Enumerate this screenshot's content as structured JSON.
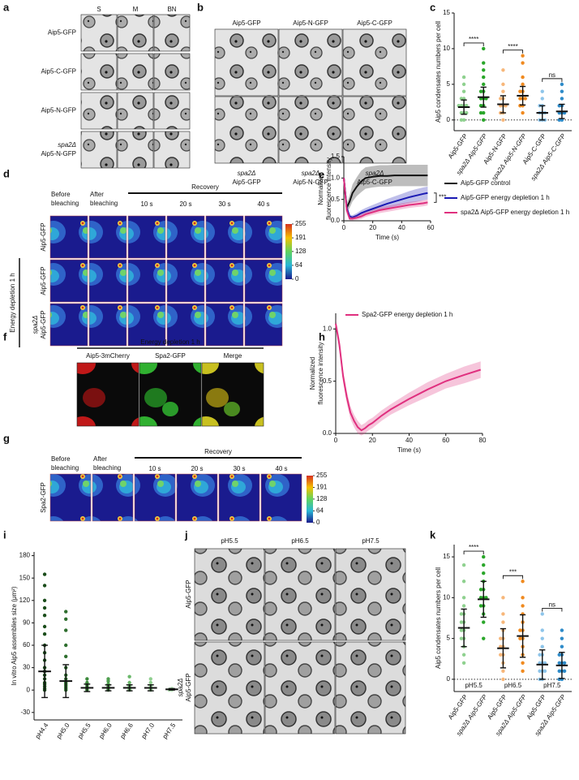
{
  "figure": {
    "a": {
      "label": "a",
      "columns": [
        "S",
        "M",
        "BN"
      ],
      "rows": [
        [
          "Aip5-GFP"
        ],
        [
          "Aip5-C-GFP"
        ],
        [
          "Aip5-N-GFP"
        ],
        [
          "spa2Δ",
          "Aip5-N-GFP"
        ]
      ]
    },
    "b": {
      "label": "b",
      "columns": [
        "Aip5-GFP",
        "Aip5-N-GFP",
        "Aip5-C-GFP"
      ],
      "bottom": [
        [
          "spa2Δ",
          "Aip5-GFP"
        ],
        [
          "spa2Δ",
          "Aip5-N-GFP"
        ],
        [
          "spa2Δ",
          "Aip5-C-GFP"
        ]
      ]
    },
    "d": {
      "label": "d",
      "before": [
        "Before",
        "bleaching"
      ],
      "after": [
        "After",
        "bleaching"
      ],
      "recovery": "Recovery",
      "times": [
        "10 s",
        "20 s",
        "30 s",
        "40 s"
      ],
      "colorbar_ticks": [
        255,
        191,
        128,
        64,
        0
      ],
      "group": "Energy depletion 1 h",
      "rows": [
        [
          "Aip5-GFP"
        ],
        [
          "Aip5-GFP"
        ],
        [
          "spa2Δ",
          "Aip5-GFP"
        ]
      ]
    },
    "f": {
      "label": "f",
      "title": "Energy depletion 1 h",
      "columns": [
        "Aip5-3mCherry",
        "Spa2-GFP",
        "Merge"
      ]
    },
    "g": {
      "label": "g",
      "before": [
        "Before",
        "bleaching"
      ],
      "after": [
        "After",
        "bleaching"
      ],
      "recovery": "Recovery",
      "times": [
        "10 s",
        "20 s",
        "30 s",
        "40 s"
      ],
      "colorbar_ticks": [
        255,
        191,
        128,
        64,
        0
      ],
      "rows": [
        [
          "Spa2-GFP"
        ]
      ]
    },
    "j": {
      "label": "j",
      "columns": [
        "pH5.5",
        "pH6.5",
        "pH7.5"
      ],
      "rows": [
        [
          "Aip5-GFP"
        ],
        [
          "spa2Δ",
          "Aip5-GFP"
        ]
      ]
    }
  },
  "chart_data": [
    {
      "type": "dotplot",
      "panel_label": "c",
      "ylabel": "Aip5 condensates numbers per cell",
      "categories": [
        "Aip5-GFP",
        "spa2Δ Aip5-GFP",
        "Aip5-N-GFP",
        "spa2Δ Aip5-N-GFP",
        "Aip5-C-GFP",
        "spa2Δ Aip5-C-GFP"
      ],
      "colors": [
        "#8fd18f",
        "#2aa62a",
        "#f7b77a",
        "#f08a1f",
        "#8ec5ea",
        "#2e8bc9"
      ],
      "points": [
        [
          0,
          0,
          1,
          1,
          1,
          2,
          2,
          2,
          2,
          3,
          3,
          4,
          5,
          6
        ],
        [
          0,
          1,
          1,
          2,
          2,
          3,
          3,
          3,
          4,
          4,
          5,
          6,
          7,
          8,
          10
        ],
        [
          0,
          1,
          1,
          2,
          2,
          2,
          3,
          3,
          4,
          5,
          7
        ],
        [
          1,
          2,
          2,
          3,
          3,
          3,
          4,
          4,
          5,
          6,
          8,
          9
        ],
        [
          0,
          0,
          0,
          1,
          1,
          1,
          2,
          2,
          3,
          4
        ],
        [
          0,
          0,
          1,
          1,
          1,
          2,
          2,
          3,
          4,
          5
        ]
      ],
      "mean": [
        1.8,
        3.2,
        2.2,
        3.4,
        1.0,
        1.2
      ],
      "sd": [
        1.0,
        1.4,
        1.2,
        1.3,
        1.0,
        1.0
      ],
      "annotations": [
        "****",
        "****",
        "ns"
      ],
      "zero_line": true,
      "ylim": [
        -1.5,
        15
      ],
      "yticks": [
        0,
        5,
        10,
        15
      ]
    },
    {
      "type": "line",
      "panel_label": "e",
      "ylabel": [
        "Normalized",
        "fluorescence intensity"
      ],
      "xlabel": "Time (s)",
      "x": [
        0,
        2,
        4,
        6,
        9,
        12,
        15,
        20,
        25,
        30,
        35,
        40,
        45,
        50,
        55,
        58
      ],
      "series": [
        {
          "name": "Aip5-GFP control",
          "color": "#111111",
          "values": [
            1.0,
            0.3,
            0.45,
            0.65,
            0.8,
            0.92,
            1.0,
            1.03,
            1.05,
            1.05,
            1.06,
            1.06,
            1.06,
            1.06,
            1.06,
            1.06
          ],
          "sd": [
            0.05,
            0.1,
            0.15,
            0.2,
            0.22,
            0.25,
            0.25,
            0.25,
            0.25,
            0.25,
            0.25,
            0.25,
            0.25,
            0.25,
            0.25,
            0.25
          ]
        },
        {
          "name": "Aip5-GFP energy depletion 1 h",
          "color": "#1a1ab3",
          "values": [
            1.0,
            0.3,
            0.1,
            0.08,
            0.12,
            0.18,
            0.22,
            0.28,
            0.34,
            0.4,
            0.45,
            0.5,
            0.55,
            0.59,
            0.63,
            0.65
          ],
          "sd": [
            0.05,
            0.1,
            0.05,
            0.05,
            0.06,
            0.07,
            0.08,
            0.09,
            0.1,
            0.11,
            0.12,
            0.13,
            0.14,
            0.15,
            0.15,
            0.15
          ]
        },
        {
          "name": "spa2Δ Aip5-GFP energy depletion 1 h",
          "color": "#e0307f",
          "values": [
            1.0,
            0.25,
            0.05,
            0.05,
            0.07,
            0.1,
            0.15,
            0.2,
            0.25,
            0.28,
            0.31,
            0.34,
            0.37,
            0.39,
            0.41,
            0.43
          ],
          "sd": [
            0.05,
            0.08,
            0.04,
            0.04,
            0.05,
            0.06,
            0.06,
            0.06,
            0.07,
            0.07,
            0.07,
            0.07,
            0.07,
            0.07,
            0.07,
            0.07
          ]
        }
      ],
      "annotation": "***",
      "legend": "right",
      "xlim": [
        0,
        60
      ],
      "xticks": [
        0,
        20,
        40,
        60
      ],
      "ylim": [
        0,
        1.5
      ],
      "yticks": [
        {
          "value": 0,
          "label": "0.0"
        },
        0.5,
        {
          "value": 1,
          "label": "1.0"
        },
        1.5
      ]
    },
    {
      "type": "line",
      "panel_label": "h",
      "ylabel": [
        "Normalized",
        "fluorescence intensity"
      ],
      "xlabel": "Time (s)",
      "x": [
        0,
        2,
        4,
        6,
        8,
        10,
        12,
        14,
        16,
        18,
        20,
        25,
        30,
        40,
        50,
        60,
        70,
        79
      ],
      "series": [
        {
          "name": "Spa2-GFP energy depletion 1 h",
          "color": "#e0307f",
          "values": [
            1.05,
            0.85,
            0.55,
            0.35,
            0.2,
            0.12,
            0.06,
            0.03,
            0.05,
            0.08,
            0.1,
            0.17,
            0.23,
            0.33,
            0.42,
            0.5,
            0.56,
            0.61
          ],
          "sd": [
            0.05,
            0.06,
            0.06,
            0.06,
            0.06,
            0.06,
            0.06,
            0.05,
            0.05,
            0.05,
            0.05,
            0.05,
            0.05,
            0.06,
            0.07,
            0.07,
            0.08,
            0.08
          ]
        }
      ],
      "legend": "top",
      "xlim": [
        0,
        80
      ],
      "xticks": [
        0,
        20,
        40,
        60,
        80
      ],
      "ylim": [
        0,
        1.15
      ],
      "yticks": [
        {
          "value": 0,
          "label": "0.0"
        },
        0.5,
        {
          "value": 1,
          "label": "1.0"
        }
      ]
    },
    {
      "type": "dotplot",
      "panel_label": "i",
      "ylabel": "In vitro Aip5 assemblies size (μm²)",
      "categories": [
        "pH4.4",
        "pH5.0",
        "pH5.5",
        "pH6.0",
        "pH6.6",
        "pH7.0",
        "pH7.5"
      ],
      "colors": [
        "#1b4d1b",
        "#2e6e2e",
        "#3c8a3c",
        "#4e9e4e",
        "#6bb86b",
        "#8fcf8f",
        "#b5e2b5"
      ],
      "points": [
        [
          0,
          2,
          5,
          8,
          10,
          15,
          20,
          25,
          30,
          40,
          50,
          60,
          75,
          85,
          100,
          110,
          120,
          140,
          155
        ],
        [
          0,
          2,
          4,
          6,
          8,
          10,
          15,
          20,
          30,
          45,
          60,
          80,
          95,
          105
        ],
        [
          0,
          1,
          2,
          3,
          4,
          6,
          8,
          10,
          15
        ],
        [
          0,
          1,
          2,
          3,
          5,
          8,
          12,
          15
        ],
        [
          0,
          1,
          2,
          4,
          6,
          10,
          18
        ],
        [
          0,
          1,
          2,
          4,
          6,
          10,
          15
        ],
        [
          0,
          0,
          1,
          1,
          2
        ]
      ],
      "mean": [
        25,
        12,
        3,
        3,
        3,
        3,
        1
      ],
      "sd": [
        35,
        22,
        5,
        4,
        4,
        4,
        1
      ],
      "ylim": [
        -40,
        185
      ],
      "yticks": [
        -30,
        0,
        30,
        60,
        90,
        120,
        150,
        180
      ]
    },
    {
      "type": "dotplot",
      "panel_label": "k",
      "ylabel": "Aip5 condensates numbers per cell",
      "categories": [
        "Aip5-GFP",
        "spa2Δ Aip5-GFP",
        "Aip5-GFP",
        "spa2Δ Aip5-GFP",
        "Aip5-GFP",
        "spa2Δ Aip5-GFP"
      ],
      "groups": [
        "pH5.5",
        "pH6.5",
        "pH7.5"
      ],
      "colors": [
        "#8fd18f",
        "#2aa62a",
        "#f7b77a",
        "#f08a1f",
        "#8ec5ea",
        "#2e8bc9"
      ],
      "points": [
        [
          2,
          3,
          4,
          5,
          5,
          6,
          6,
          7,
          7,
          8,
          8,
          9,
          10,
          12,
          14
        ],
        [
          5,
          7,
          8,
          9,
          9,
          10,
          10,
          10,
          11,
          11,
          12,
          13,
          14,
          15
        ],
        [
          0,
          1,
          2,
          3,
          3,
          4,
          4,
          5,
          5,
          6,
          7,
          8,
          10
        ],
        [
          1,
          2,
          3,
          4,
          5,
          5,
          6,
          6,
          7,
          8,
          9,
          10,
          12
        ],
        [
          0,
          0,
          1,
          1,
          1,
          2,
          2,
          2,
          3,
          3,
          4,
          5,
          6,
          8
        ],
        [
          0,
          0,
          1,
          1,
          1,
          2,
          2,
          2,
          3,
          3,
          4,
          5,
          6
        ]
      ],
      "mean": [
        6.3,
        9.8,
        3.8,
        5.3,
        1.8,
        1.7
      ],
      "sd": [
        2.3,
        2.2,
        2.4,
        2.6,
        1.8,
        1.6
      ],
      "annotations": [
        "****",
        "***",
        "ns"
      ],
      "zero_line": true,
      "ylim": [
        -1.5,
        16.5
      ],
      "yticks": [
        0,
        5,
        10,
        15
      ]
    }
  ]
}
